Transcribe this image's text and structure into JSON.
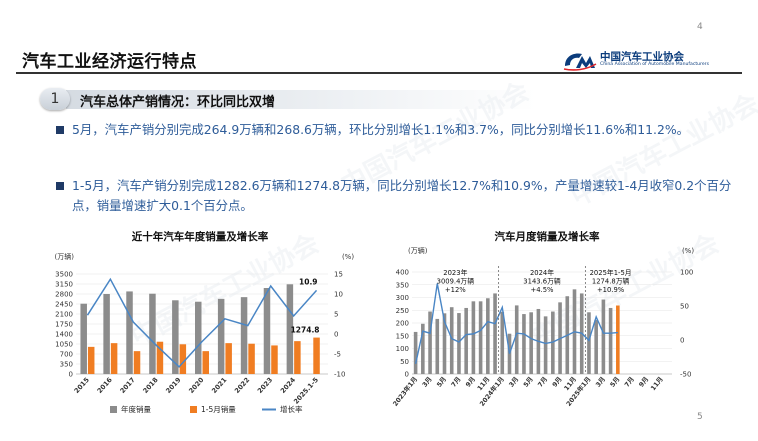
{
  "page": {
    "num_top": "4",
    "num_bottom": "5"
  },
  "slide_title": "汽车工业经济运行特点",
  "logo": {
    "cn": "中国汽车工业协会",
    "en": "China Association of Automobile Manufacturers",
    "color": "#0b3c7c"
  },
  "section": {
    "number": "1",
    "title": "汽车总体产销情况：环比同比双增"
  },
  "bullets": [
    "5月，汽车产销分别完成264.9万辆和268.6万辆，环比分别增长1.1%和3.7%，同比分别增长11.6%和11.2%。",
    "1-5月，汽车产销分别完成1282.6万辆和1274.8万辆，同比分别增长12.7%和10.9%，产量增速较1-4月收窄0.2个百分点，销量增速扩大0.1个百分点。"
  ],
  "watermark_text": "中国汽车工业协会",
  "colors": {
    "bar_gray": "#8c8c8c",
    "bar_orange": "#f07d22",
    "line_blue": "#4a86c5",
    "bullet_text": "#2e5c99"
  },
  "chart_data": [
    {
      "type": "bar",
      "title": "近十年汽车年度销量及增长率",
      "ylabel_left": "(万辆)",
      "ylabel_right": "(%)",
      "categories": [
        "2015",
        "2016",
        "2017",
        "2018",
        "2019",
        "2020",
        "2021",
        "2022",
        "2023",
        "2024",
        "2025.1-5"
      ],
      "yticks_left": [
        "0",
        "350",
        "700",
        "1050",
        "1400",
        "1750",
        "2100",
        "2450",
        "2800",
        "3150",
        "3500"
      ],
      "yticks_right": [
        "-10",
        "-5",
        "0",
        "5",
        "10",
        "15"
      ],
      "ylim_left": [
        0,
        3500
      ],
      "ylim_right": [
        -10,
        15
      ],
      "series": [
        {
          "name": "年度销量",
          "kind": "bar",
          "axis": "left",
          "values": [
            2460,
            2800,
            2890,
            2810,
            2580,
            2530,
            2630,
            2690,
            3010,
            3140,
            null
          ]
        },
        {
          "name": "1-5月销量",
          "kind": "bar",
          "axis": "left",
          "values": [
            950,
            1080,
            800,
            1130,
            1040,
            800,
            1080,
            1060,
            1000,
            1150,
            1274.8
          ]
        },
        {
          "name": "增长率",
          "kind": "line",
          "axis": "right",
          "values": [
            4.7,
            13.7,
            3.0,
            -2.8,
            -8.2,
            -1.9,
            3.8,
            2.1,
            12.0,
            4.5,
            10.9
          ]
        }
      ],
      "annotations": [
        {
          "text": "10.9"
        },
        {
          "text": "1274.8"
        }
      ],
      "legend_position": "bottom"
    },
    {
      "type": "bar",
      "title": "汽车月度销量及增长率",
      "ylabel_left": "(万辆)",
      "ylabel_right": "(%)",
      "categories": [
        "2023年1月",
        "2月",
        "3月",
        "4月",
        "5月",
        "6月",
        "7月",
        "8月",
        "9月",
        "10月",
        "11月",
        "12月",
        "2024年1月",
        "2月",
        "3月",
        "4月",
        "5月",
        "6月",
        "7月",
        "8月",
        "9月",
        "10月",
        "11月",
        "12月",
        "2025年1月",
        "2月",
        "3月",
        "4月",
        "5月",
        "6月",
        "7月",
        "8月",
        "9月",
        "10月",
        "11月",
        "12月"
      ],
      "tick_labels": [
        "2023年1月",
        "3月",
        "5月",
        "7月",
        "9月",
        "11月",
        "2024年1月",
        "3月",
        "5月",
        "7月",
        "9月",
        "11月",
        "2025年1月",
        "3月",
        "5月",
        "7月",
        "9月",
        "11月"
      ],
      "yticks_left": [
        "0",
        "50",
        "100",
        "150",
        "200",
        "250",
        "300",
        "350",
        "400"
      ],
      "yticks_right": [
        "-50",
        "0",
        "50",
        "100"
      ],
      "ylim_left": [
        0,
        400
      ],
      "ylim_right": [
        -50,
        100
      ],
      "series": [
        {
          "name": "月度销量",
          "kind": "bar",
          "axis": "left",
          "values": [
            165,
            197,
            245,
            216,
            238,
            262,
            239,
            259,
            285,
            285,
            297,
            316,
            244,
            158,
            269,
            235,
            242,
            255,
            226,
            245,
            281,
            305,
            332,
            316,
            242,
            212,
            292,
            259,
            268.6,
            null,
            null,
            null,
            null,
            null,
            null,
            null
          ]
        },
        {
          "name": "月度销量(2025.5)",
          "kind": "bar-highlight",
          "axis": "left",
          "index": 28,
          "value": 268.6
        },
        {
          "name": "增长率",
          "kind": "line",
          "axis": "right",
          "values": [
            -35,
            13,
            10,
            83,
            27,
            2,
            -3,
            8,
            9,
            14,
            27,
            24,
            48,
            -20,
            10,
            9,
            2,
            -2,
            -5,
            -3,
            2,
            7,
            12,
            10,
            -0.6,
            34,
            10,
            10,
            11,
            null,
            null,
            null,
            null,
            null,
            null,
            null
          ]
        }
      ],
      "annotations": [
        {
          "lines": [
            "2023年",
            "3009.4万辆",
            "+12%"
          ]
        },
        {
          "lines": [
            "2024年",
            "3143.6万辆",
            "+4.5%"
          ]
        },
        {
          "lines": [
            "2025年1-5月",
            "1274.8万辆",
            "+10.9%"
          ]
        }
      ]
    }
  ]
}
